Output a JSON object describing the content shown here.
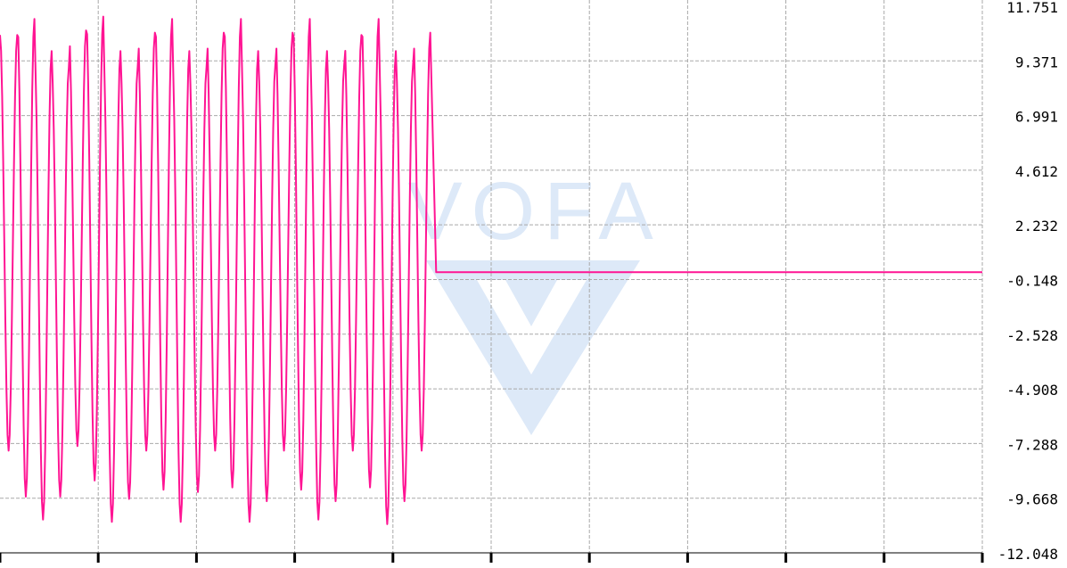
{
  "watermark": {
    "text": "VOFA",
    "logo_icon": "v-logo-icon"
  },
  "colors": {
    "series": "#ff1493",
    "grid": "#a9a9a9",
    "axis": "#000000",
    "watermark": "#dde9f8",
    "background": "#ffffff"
  },
  "chart_data": {
    "type": "line",
    "title": "",
    "xlabel": "",
    "ylabel": "",
    "y_axis_position": "right",
    "grid": true,
    "legend": "none",
    "ylim": [
      -12.048,
      11.751
    ],
    "y_ticks": [
      "11.751",
      "9.371",
      "6.991",
      "4.612",
      "2.232",
      "-0.148",
      "-2.528",
      "-4.908",
      "-7.288",
      "-9.668",
      "-12.048"
    ],
    "x_tick_count": 11,
    "series": [
      {
        "color": "#ff1493",
        "segments": [
          {
            "kind": "oscillation",
            "x_start": 0,
            "x_end": 4.38,
            "peaks": [
              10.5,
              11.2,
              9.8,
              9.1,
              10.7,
              11.3,
              9.8,
              9.1,
              10.6,
              11.2,
              9.8,
              9.1,
              10.6,
              11.2,
              9.8,
              9.2,
              10.6,
              11.2,
              9.8,
              9.2,
              10.5,
              11.2,
              9.8,
              9.2,
              10.6
            ],
            "troughs": [
              -7.6,
              -9.6,
              -10.6,
              -9.6,
              -7.4,
              -8.9,
              -10.7,
              -9.7,
              -7.6,
              -9.3,
              -10.7,
              -9.4,
              -7.6,
              -9.2,
              -10.7,
              -9.8,
              -7.6,
              -9.3,
              -10.6,
              -9.8,
              -7.6,
              -9.2,
              -10.8,
              -9.8,
              -7.6
            ]
          },
          {
            "kind": "flat",
            "x_start": 4.44,
            "x_end": 10.0,
            "value": 0.17
          }
        ]
      }
    ]
  }
}
